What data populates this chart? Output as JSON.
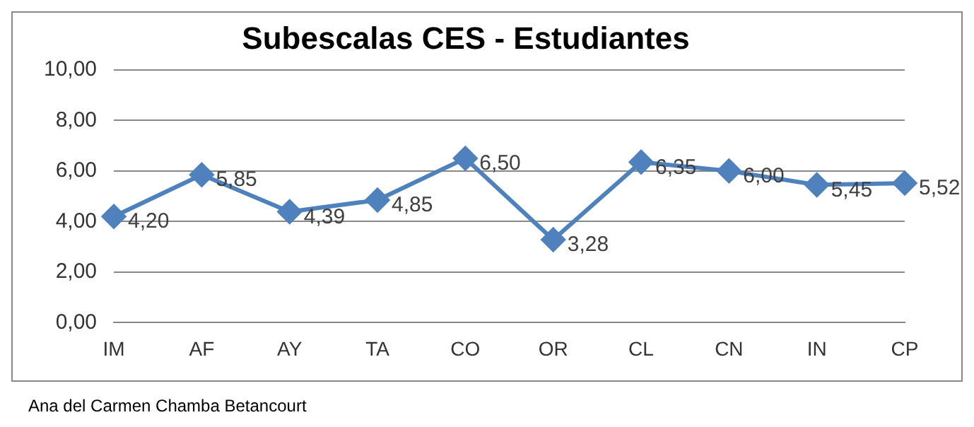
{
  "chart_data": {
    "type": "line",
    "title": "Subescalas CES - Estudiantes",
    "categories": [
      "IM",
      "AF",
      "AY",
      "TA",
      "CO",
      "OR",
      "CL",
      "CN",
      "IN",
      "CP"
    ],
    "series": [
      {
        "color": "#4f81bd",
        "values": [
          4.2,
          5.85,
          4.39,
          4.85,
          6.5,
          3.28,
          6.35,
          6.0,
          5.45,
          5.52
        ],
        "value_labels": [
          "4,20",
          "5,85",
          "4,39",
          "4,85",
          "6,50",
          "3,28",
          "6,35",
          "6,00",
          "5,45",
          "5,52"
        ]
      }
    ],
    "ylim": [
      0,
      10
    ],
    "yticks": [
      {
        "value": 0,
        "label": "0,00"
      },
      {
        "value": 2,
        "label": "2,00"
      },
      {
        "value": 4,
        "label": "4,00"
      },
      {
        "value": 6,
        "label": "6,00"
      },
      {
        "value": 8,
        "label": "8,00"
      },
      {
        "value": 10,
        "label": "10,00"
      }
    ],
    "grid": "y",
    "legend": false,
    "marker": "diamond",
    "line_style": "solid",
    "annotations": [
      "Ana del Carmen Chamba Betancourt"
    ]
  }
}
